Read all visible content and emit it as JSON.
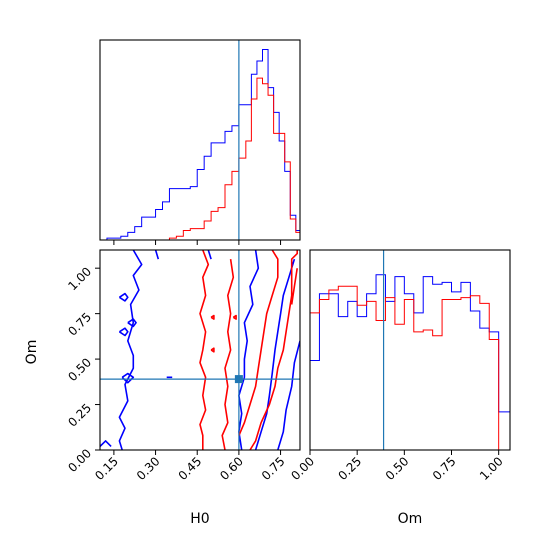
{
  "chart_data": {
    "type": "corner",
    "parameters": [
      "H0",
      "Om"
    ],
    "truth": {
      "H0": 0.6,
      "Om": 0.39
    },
    "colors": {
      "series_a": "#0000ff",
      "series_b": "#ff0000",
      "truth": "#1f77b4"
    },
    "panels": [
      {
        "id": "h0-hist",
        "type": "step-histogram",
        "xlim": [
          0.1,
          0.82
        ],
        "xticks": [
          "0.15",
          "0.30",
          "0.45",
          "0.60",
          "0.75"
        ],
        "xtick_values": [
          0.15,
          0.3,
          0.45,
          0.6,
          0.75
        ],
        "ylim": [
          0,
          1.0
        ],
        "bin_edges": [
          0.1,
          0.125,
          0.15,
          0.175,
          0.2,
          0.225,
          0.25,
          0.275,
          0.3,
          0.325,
          0.35,
          0.375,
          0.4,
          0.425,
          0.45,
          0.475,
          0.5,
          0.525,
          0.55,
          0.575,
          0.6,
          0.625,
          0.645,
          0.665,
          0.685,
          0.705,
          0.725,
          0.745,
          0.765,
          0.785,
          0.805,
          0.82
        ],
        "series": [
          {
            "color": "blue",
            "values": [
              0.0,
              0.01,
              0.01,
              0.02,
              0.04,
              0.07,
              0.12,
              0.12,
              0.16,
              0.2,
              0.27,
              0.27,
              0.27,
              0.28,
              0.37,
              0.44,
              0.51,
              0.51,
              0.57,
              0.6,
              0.71,
              0.71,
              0.87,
              0.94,
              1.0,
              0.8,
              0.67,
              0.52,
              0.36,
              0.13,
              0.05
            ]
          },
          {
            "color": "red",
            "values": [
              0.0,
              0.0,
              0.0,
              0.0,
              0.0,
              0.0,
              0.0,
              0.0,
              0.0,
              0.0,
              0.01,
              0.02,
              0.05,
              0.06,
              0.06,
              0.1,
              0.15,
              0.17,
              0.29,
              0.36,
              0.43,
              0.52,
              0.74,
              0.85,
              0.82,
              0.76,
              0.56,
              0.56,
              0.41,
              0.11,
              0.04
            ]
          }
        ]
      },
      {
        "id": "om-hist",
        "type": "step-histogram",
        "xlim": [
          0,
          1.06
        ],
        "xticks": [
          "0.00",
          "0.25",
          "0.50",
          "0.75",
          "1.00"
        ],
        "xtick_values": [
          0,
          0.25,
          0.5,
          0.75,
          1.0
        ],
        "ylim": [
          0,
          1.0
        ],
        "bin_edges": [
          0,
          0.05,
          0.1,
          0.15,
          0.2,
          0.25,
          0.3,
          0.35,
          0.4,
          0.45,
          0.5,
          0.55,
          0.6,
          0.65,
          0.7,
          0.75,
          0.8,
          0.85,
          0.9,
          0.95,
          1.0,
          1.06
        ],
        "series": [
          {
            "color": "blue",
            "values": [
              0.47,
              0.82,
              0.82,
              0.7,
              0.78,
              0.7,
              0.82,
              0.92,
              0.78,
              0.91,
              0.82,
              0.72,
              0.91,
              0.87,
              0.88,
              0.83,
              0.88,
              0.73,
              0.64,
              0.62,
              0.2
            ]
          },
          {
            "color": "red",
            "values": [
              0.72,
              0.79,
              0.84,
              0.86,
              0.86,
              0.76,
              0.78,
              0.68,
              0.8,
              0.66,
              0.79,
              0.62,
              0.63,
              0.6,
              0.79,
              0.79,
              0.8,
              0.81,
              0.77,
              0.58,
              0.0
            ]
          }
        ]
      },
      {
        "id": "h0-om-contour",
        "type": "contour",
        "xlabel": "H0",
        "ylabel": "Om",
        "xlim": [
          0.1,
          0.82
        ],
        "ylim": [
          0,
          1.1
        ],
        "xticks": [
          "0.15",
          "0.30",
          "0.45",
          "0.60",
          "0.75"
        ],
        "xtick_values": [
          0.15,
          0.3,
          0.45,
          0.6,
          0.75
        ],
        "yticks": [
          "0.00",
          "0.25",
          "0.50",
          "0.75",
          "1.00"
        ],
        "ytick_values": [
          0,
          0.25,
          0.5,
          0.75,
          1.0
        ],
        "marker": {
          "x": 0.6,
          "y": 0.39
        },
        "contours": [
          {
            "color": "blue",
            "points": [
              [
                0.1,
                0.02
              ],
              [
                0.12,
                0.05
              ],
              [
                0.14,
                0.02
              ]
            ]
          },
          {
            "color": "blue",
            "points": [
              [
                0.18,
                0.0
              ],
              [
                0.17,
                0.05
              ],
              [
                0.19,
                0.12
              ],
              [
                0.17,
                0.18
              ],
              [
                0.2,
                0.27
              ],
              [
                0.19,
                0.36
              ],
              [
                0.22,
                0.45
              ],
              [
                0.22,
                0.52
              ],
              [
                0.2,
                0.6
              ],
              [
                0.22,
                0.7
              ],
              [
                0.21,
                0.8
              ],
              [
                0.24,
                0.88
              ],
              [
                0.22,
                0.96
              ],
              [
                0.25,
                1.02
              ],
              [
                0.22,
                1.1
              ]
            ]
          },
          {
            "color": "blue",
            "points": [
              [
                0.17,
                0.84
              ],
              [
                0.19,
                0.82
              ],
              [
                0.2,
                0.84
              ],
              [
                0.19,
                0.86
              ],
              [
                0.17,
                0.84
              ]
            ]
          },
          {
            "color": "blue",
            "points": [
              [
                0.17,
                0.65
              ],
              [
                0.19,
                0.63
              ],
              [
                0.2,
                0.65
              ],
              [
                0.19,
                0.67
              ],
              [
                0.17,
                0.65
              ]
            ]
          },
          {
            "color": "blue",
            "points": [
              [
                0.2,
                0.7
              ],
              [
                0.22,
                0.68
              ],
              [
                0.23,
                0.7
              ],
              [
                0.22,
                0.72
              ],
              [
                0.2,
                0.7
              ]
            ]
          },
          {
            "color": "blue",
            "points": [
              [
                0.18,
                0.4
              ],
              [
                0.2,
                0.37
              ],
              [
                0.22,
                0.4
              ],
              [
                0.2,
                0.42
              ],
              [
                0.18,
                0.4
              ]
            ]
          },
          {
            "color": "blue",
            "points": [
              [
                0.3,
                1.1
              ],
              [
                0.31,
                1.05
              ]
            ]
          },
          {
            "color": "blue",
            "points": [
              [
                0.49,
                1.1
              ],
              [
                0.5,
                1.05
              ]
            ]
          },
          {
            "color": "blue",
            "points": [
              [
                0.34,
                0.4
              ],
              [
                0.36,
                0.4
              ]
            ]
          },
          {
            "color": "blue",
            "points": [
              [
                0.61,
                0.0
              ],
              [
                0.6,
                0.1
              ],
              [
                0.61,
                0.2
              ],
              [
                0.6,
                0.3
              ],
              [
                0.62,
                0.4
              ],
              [
                0.62,
                0.5
              ],
              [
                0.63,
                0.6
              ],
              [
                0.62,
                0.7
              ],
              [
                0.65,
                0.8
              ],
              [
                0.64,
                0.9
              ],
              [
                0.67,
                1.0
              ],
              [
                0.66,
                1.1
              ]
            ]
          },
          {
            "color": "blue",
            "points": [
              [
                0.66,
                0.0
              ],
              [
                0.68,
                0.1
              ],
              [
                0.7,
                0.2
              ],
              [
                0.71,
                0.3
              ],
              [
                0.72,
                0.42
              ],
              [
                0.73,
                0.55
              ],
              [
                0.74,
                0.65
              ],
              [
                0.75,
                0.75
              ],
              [
                0.76,
                0.85
              ],
              [
                0.78,
                0.95
              ],
              [
                0.8,
                1.05
              ]
            ]
          },
          {
            "color": "blue",
            "points": [
              [
                0.74,
                0.0
              ],
              [
                0.76,
                0.1
              ],
              [
                0.77,
                0.22
              ],
              [
                0.79,
                0.35
              ],
              [
                0.8,
                0.48
              ],
              [
                0.82,
                0.6
              ]
            ]
          },
          {
            "color": "red",
            "points": [
              [
                0.47,
                0.0
              ],
              [
                0.47,
                0.08
              ],
              [
                0.46,
                0.14
              ],
              [
                0.48,
                0.22
              ],
              [
                0.47,
                0.3
              ],
              [
                0.48,
                0.4
              ],
              [
                0.46,
                0.48
              ],
              [
                0.47,
                0.55
              ],
              [
                0.48,
                0.65
              ],
              [
                0.46,
                0.75
              ],
              [
                0.48,
                0.85
              ],
              [
                0.47,
                0.95
              ],
              [
                0.49,
                1.02
              ],
              [
                0.47,
                1.1
              ]
            ]
          },
          {
            "color": "red",
            "points": [
              [
                0.55,
                0.0
              ],
              [
                0.54,
                0.08
              ],
              [
                0.56,
                0.15
              ],
              [
                0.55,
                0.25
              ],
              [
                0.56,
                0.35
              ],
              [
                0.55,
                0.45
              ],
              [
                0.57,
                0.55
              ],
              [
                0.56,
                0.65
              ],
              [
                0.57,
                0.75
              ],
              [
                0.56,
                0.85
              ],
              [
                0.58,
                0.95
              ],
              [
                0.57,
                1.05
              ]
            ]
          },
          {
            "color": "red",
            "points": [
              [
                0.58,
                0.73
              ],
              [
                0.59,
                0.72
              ],
              [
                0.59,
                0.74
              ],
              [
                0.58,
                0.73
              ]
            ]
          },
          {
            "color": "red",
            "points": [
              [
                0.5,
                0.55
              ],
              [
                0.51,
                0.54
              ],
              [
                0.51,
                0.56
              ],
              [
                0.5,
                0.55
              ]
            ]
          },
          {
            "color": "red",
            "points": [
              [
                0.5,
                0.73
              ],
              [
                0.51,
                0.72
              ],
              [
                0.51,
                0.74
              ],
              [
                0.5,
                0.73
              ]
            ]
          },
          {
            "color": "red",
            "points": [
              [
                0.6,
                0.08
              ],
              [
                0.62,
                0.15
              ],
              [
                0.64,
                0.25
              ],
              [
                0.66,
                0.35
              ],
              [
                0.67,
                0.45
              ],
              [
                0.68,
                0.55
              ],
              [
                0.69,
                0.65
              ],
              [
                0.7,
                0.75
              ],
              [
                0.72,
                0.85
              ],
              [
                0.74,
                0.95
              ],
              [
                0.74,
                1.05
              ],
              [
                0.72,
                1.1
              ]
            ]
          },
          {
            "color": "red",
            "points": [
              [
                0.64,
                0.0
              ],
              [
                0.66,
                0.05
              ],
              [
                0.68,
                0.15
              ],
              [
                0.71,
                0.25
              ],
              [
                0.73,
                0.35
              ],
              [
                0.74,
                0.45
              ],
              [
                0.76,
                0.55
              ],
              [
                0.77,
                0.65
              ],
              [
                0.78,
                0.75
              ],
              [
                0.79,
                0.85
              ],
              [
                0.79,
                0.95
              ],
              [
                0.79,
                1.05
              ],
              [
                0.81,
                1.08
              ],
              [
                0.81,
                1.1
              ]
            ]
          },
          {
            "color": "red",
            "points": [
              [
                0.79,
                0.8
              ],
              [
                0.8,
                0.9
              ],
              [
                0.81,
                1.0
              ]
            ]
          }
        ]
      }
    ]
  }
}
